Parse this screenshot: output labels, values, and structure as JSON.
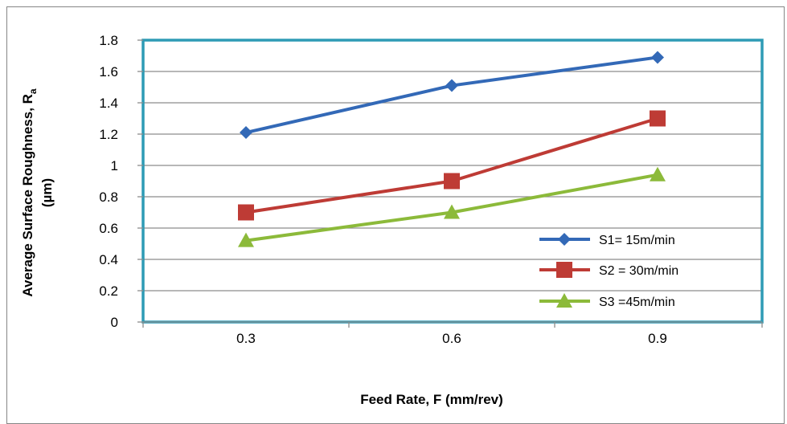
{
  "chart_data": {
    "type": "line",
    "x": [
      "0.3",
      "0.6",
      "0.9"
    ],
    "xlabel": "Feed Rate, F (mm/rev)",
    "ylabel": {
      "line1_main": "Average Surface Roughness, R",
      "line1_sub": "a",
      "line2": "(µm)"
    },
    "ylim": [
      0,
      1.8
    ],
    "yticks": [
      "0",
      "0.2",
      "0.4",
      "0.6",
      "0.8",
      "1",
      "1.2",
      "1.4",
      "1.6",
      "1.8"
    ],
    "grid": true,
    "legend_position": "bottom-right",
    "plot_border_color": "#2e9bb5",
    "series": [
      {
        "name": "S1= 15m/min",
        "values": [
          1.21,
          1.51,
          1.69
        ],
        "color": "#3369b7",
        "marker": "diamond"
      },
      {
        "name": "S2 = 30m/min",
        "values": [
          0.7,
          0.9,
          1.3
        ],
        "color": "#be3b35",
        "marker": "square"
      },
      {
        "name": "S3 =45m/min",
        "values": [
          0.52,
          0.7,
          0.94
        ],
        "color": "#8cba3a",
        "marker": "triangle"
      }
    ]
  }
}
